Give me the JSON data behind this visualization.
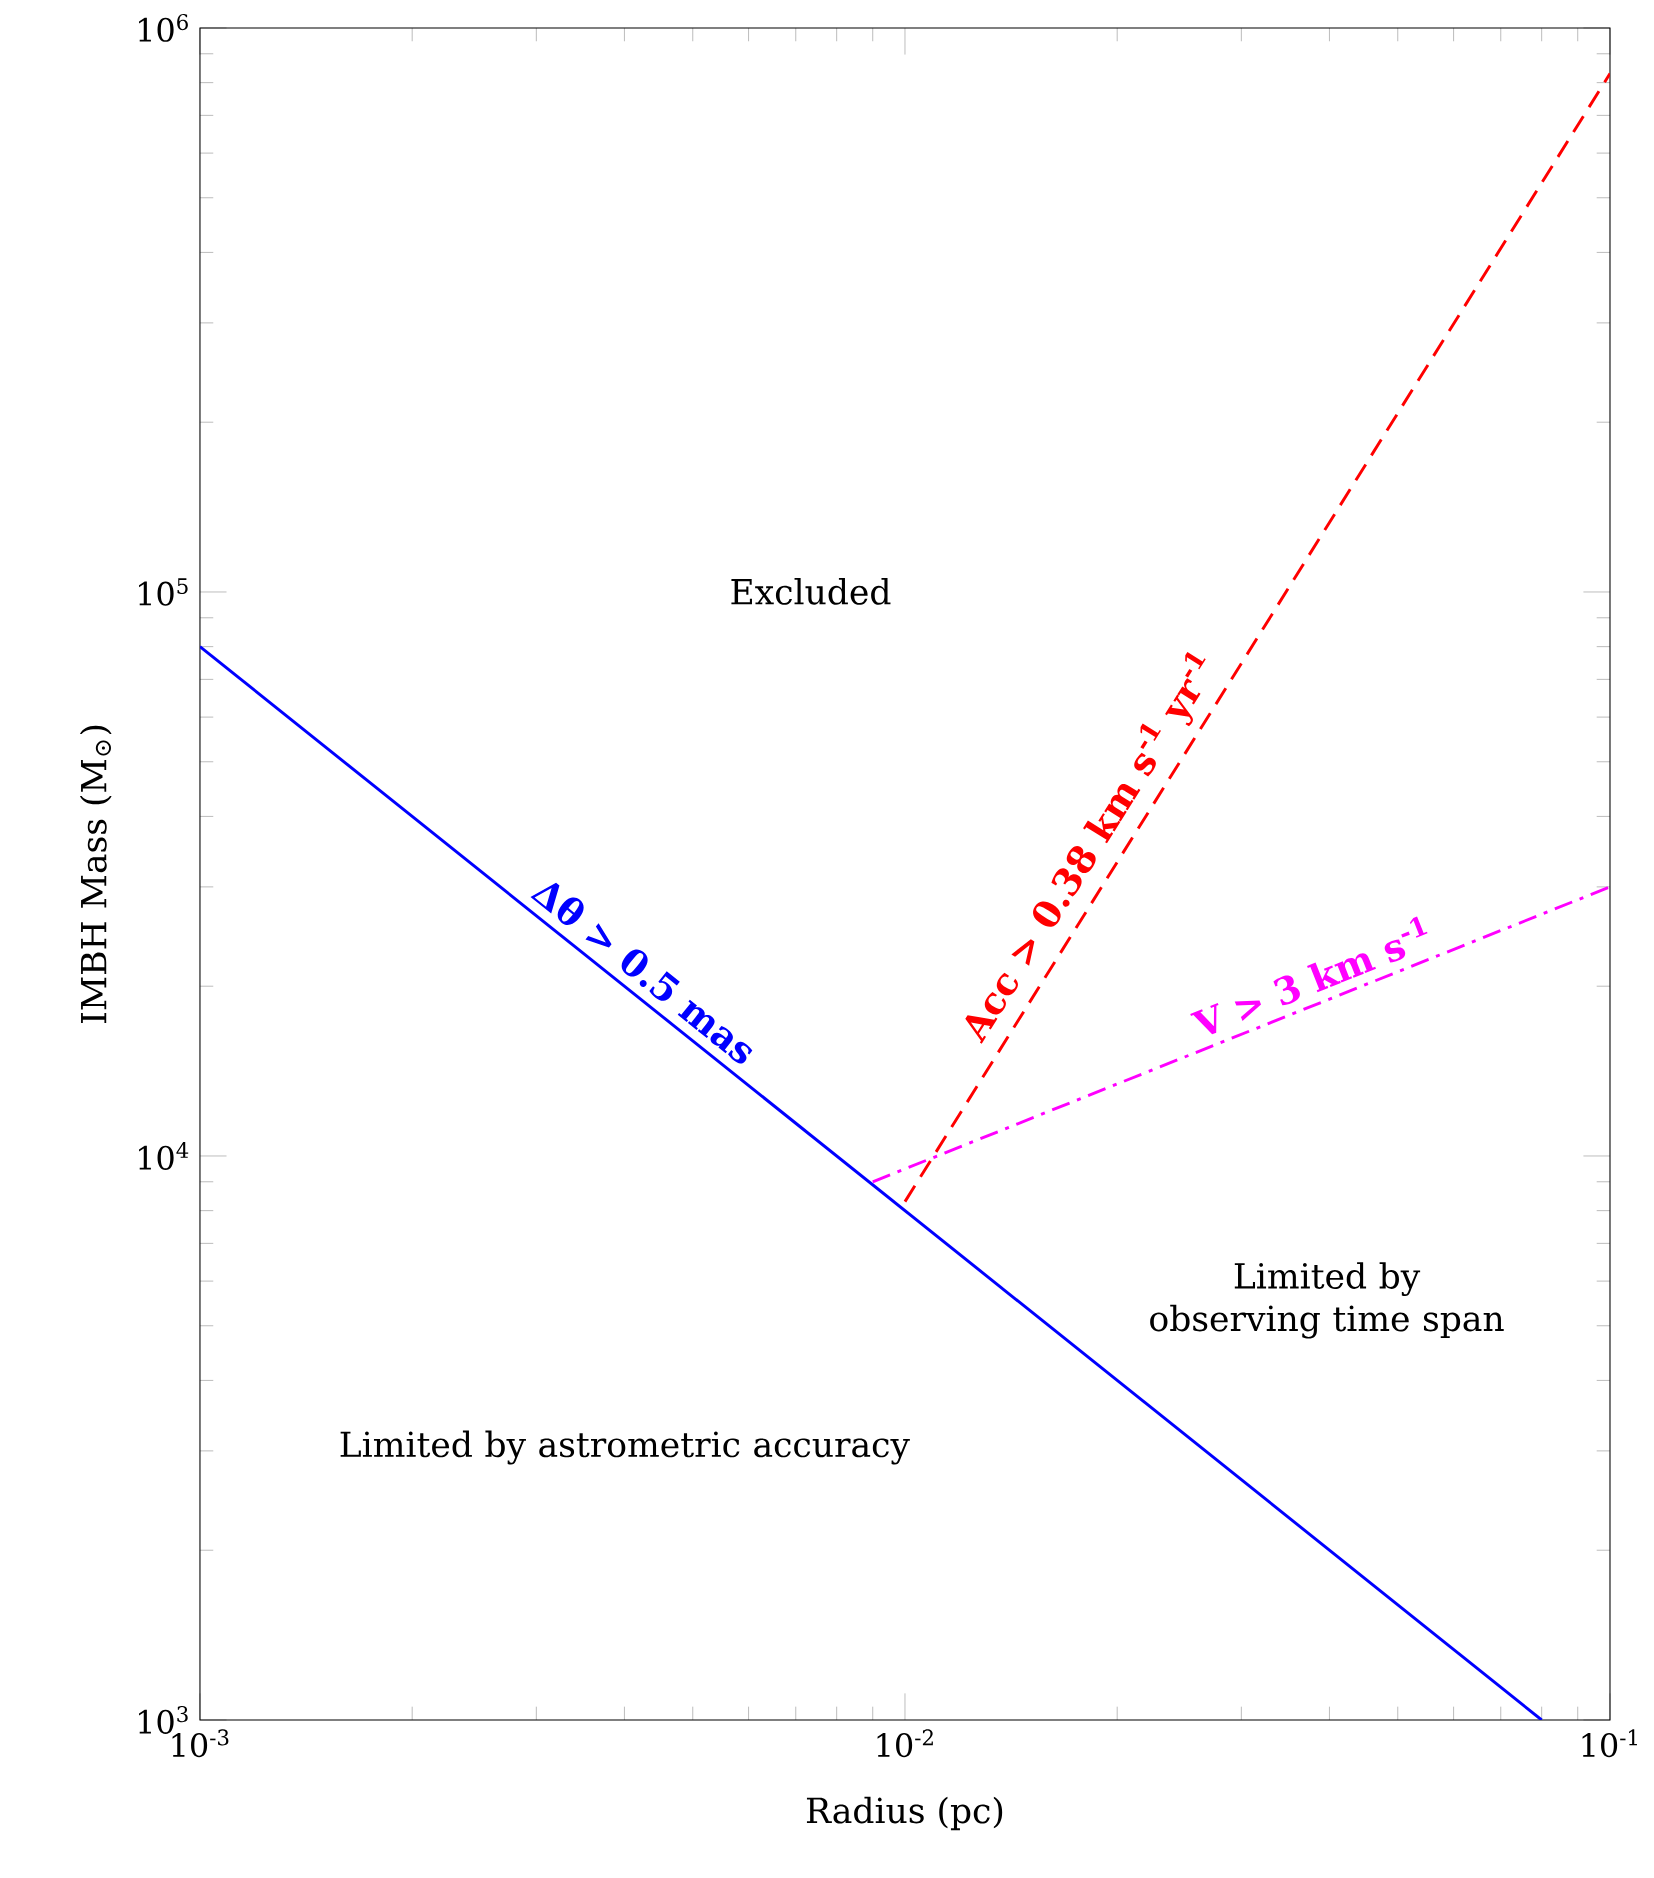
{
  "chart_data": {
    "type": "line",
    "xlabel": "Radius (pc)",
    "ylabel": "IMBH Mass (M$_{⊙}$)",
    "log": "xy",
    "xlim": [
      0.001,
      0.1
    ],
    "ylim": [
      1000,
      1000000
    ],
    "xticks": [
      {
        "value": 0.001,
        "label": "10$^{-3}$"
      },
      {
        "value": 0.01,
        "label": "10$^{-2}$"
      },
      {
        "value": 0.1,
        "label": "10$^{-1}$"
      }
    ],
    "yticks": [
      {
        "value": 1000,
        "label": "10$^{3}$"
      },
      {
        "value": 10000,
        "label": "10$^{4}$"
      },
      {
        "value": 100000,
        "label": "10$^{5}$"
      },
      {
        "value": 1000000,
        "label": "10$^{6}$"
      }
    ],
    "grid": false,
    "marker": "none",
    "series": [
      {
        "name": "Δθ > 0.5 mas",
        "color": "#0000ff",
        "line_style": "solid",
        "x": [
          0.001,
          0.08
        ],
        "values": [
          80000,
          1000
        ]
      },
      {
        "name": "Acc > 0.38 km s$^{-1}$ yr$^{-1}$",
        "color": "#ff0000",
        "line_style": "dashed",
        "x": [
          0.01,
          0.1
        ],
        "values": [
          8300,
          830000
        ]
      },
      {
        "name": "V > 3 km s$^{-1}$",
        "color": "#ff00ff",
        "line_style": "dashdot",
        "x": [
          0.009,
          0.1
        ],
        "values": [
          9000,
          30000
        ]
      }
    ],
    "annotations": [
      "Excluded",
      "Limited by observing time span",
      "Limited by astrometric accuracy"
    ]
  }
}
